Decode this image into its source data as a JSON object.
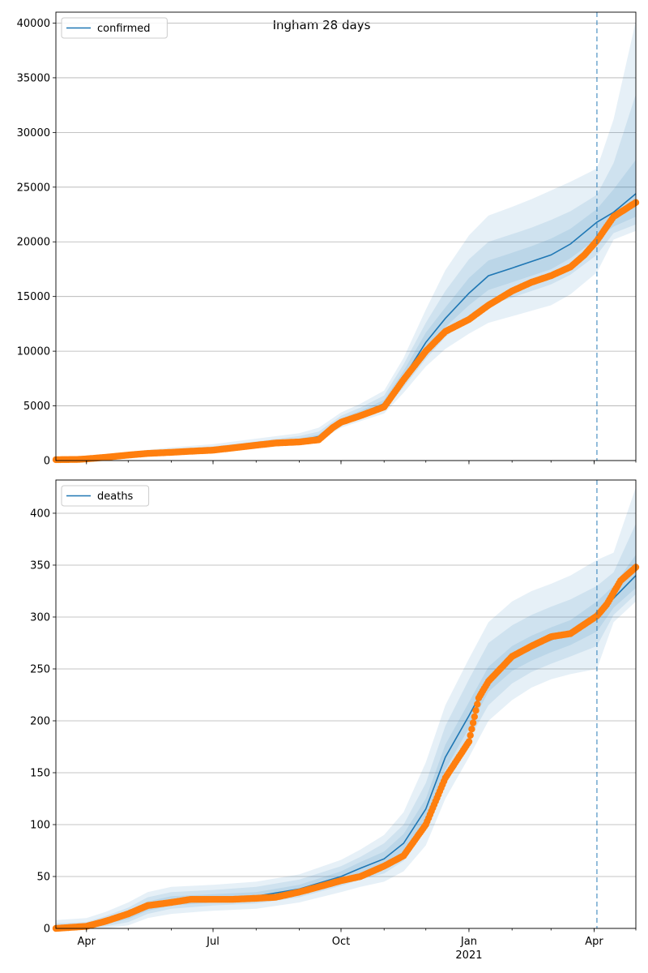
{
  "figure": {
    "title": "Ingham 28 days",
    "forecast_marker_date": "2021-04-03"
  },
  "colors": {
    "model_line": "#1f77b4",
    "band": "#1f77b4",
    "observed": "#ff7f0e",
    "grid": "#b0b0b0"
  },
  "x_axis": {
    "range": [
      "2020-03-10",
      "2021-05-01"
    ],
    "ticks": [
      {
        "date": "2020-04-01",
        "label": "Apr"
      },
      {
        "date": "2020-07-01",
        "label": "Jul"
      },
      {
        "date": "2020-10-01",
        "label": "Oct"
      },
      {
        "date": "2021-01-01",
        "label": "Jan",
        "sublabel": "2021"
      },
      {
        "date": "2021-04-01",
        "label": "Apr"
      }
    ]
  },
  "chart_data": [
    {
      "type": "line",
      "legend": [
        "confirmed"
      ],
      "legend_position": "top-left",
      "grid": "horizontal",
      "ylim": [
        0,
        41000
      ],
      "yticks": [
        0,
        5000,
        10000,
        15000,
        20000,
        25000,
        30000,
        35000,
        40000
      ],
      "series": [
        {
          "name": "confirmed",
          "kind": "model",
          "x": [
            "2020-03-10",
            "2020-04-01",
            "2020-05-01",
            "2020-06-01",
            "2020-07-01",
            "2020-08-01",
            "2020-09-01",
            "2020-09-15",
            "2020-10-01",
            "2020-10-15",
            "2020-11-01",
            "2020-11-15",
            "2020-12-01",
            "2020-12-15",
            "2021-01-01",
            "2021-01-15",
            "2021-02-01",
            "2021-02-15",
            "2021-03-01",
            "2021-03-15",
            "2021-04-03",
            "2021-04-15",
            "2021-05-01"
          ],
          "y": [
            50,
            200,
            500,
            800,
            1000,
            1400,
            1800,
            2200,
            3600,
            4300,
            5200,
            7600,
            10800,
            13000,
            15300,
            16900,
            17600,
            18200,
            18800,
            19800,
            21800,
            22700,
            24400
          ],
          "bands": [
            {
              "lower": [
                0,
                100,
                350,
                600,
                800,
                1150,
                1500,
                1800,
                3000,
                3600,
                4300,
                6200,
                8600,
                10200,
                11600,
                12600,
                13200,
                13700,
                14200,
                15200,
                17200,
                20200,
                21000
              ],
              "upper": [
                200,
                400,
                800,
                1200,
                1500,
                2000,
                2500,
                3000,
                4400,
                5200,
                6400,
                9400,
                13800,
                17400,
                20600,
                22400,
                23200,
                23900,
                24700,
                25500,
                26700,
                31200,
                40200
              ]
            },
            {
              "lower": [
                20,
                140,
                400,
                680,
                880,
                1250,
                1600,
                1950,
                3200,
                3850,
                4600,
                6700,
                9300,
                11300,
                13000,
                14200,
                14900,
                15500,
                16100,
                17000,
                18800,
                20800,
                21600
              ],
              "upper": [
                140,
                320,
                700,
                1050,
                1300,
                1750,
                2250,
                2650,
                4100,
                4850,
                5950,
                8800,
                12600,
                15500,
                18400,
                20000,
                20700,
                21300,
                22000,
                22800,
                24300,
                27200,
                33500
              ]
            },
            {
              "lower": [
                35,
                170,
                450,
                740,
                940,
                1320,
                1700,
                2080,
                3400,
                4050,
                4900,
                7150,
                10000,
                12200,
                14200,
                15600,
                16300,
                16900,
                17500,
                18500,
                20300,
                21400,
                22300
              ],
              "upper": [
                90,
                260,
                600,
                900,
                1150,
                1550,
                2000,
                2400,
                3850,
                4550,
                5550,
                8200,
                11700,
                14000,
                16700,
                18300,
                19000,
                19600,
                20300,
                21200,
                23000,
                24800,
                27500
              ]
            }
          ]
        },
        {
          "name": "",
          "kind": "observed",
          "x": [
            "2020-03-10",
            "2020-03-25",
            "2020-04-01",
            "2020-04-15",
            "2020-05-01",
            "2020-05-15",
            "2020-06-01",
            "2020-06-15",
            "2020-07-01",
            "2020-07-15",
            "2020-08-01",
            "2020-08-15",
            "2020-09-01",
            "2020-09-15",
            "2020-09-25",
            "2020-10-01",
            "2020-10-15",
            "2020-11-01",
            "2020-11-15",
            "2020-12-01",
            "2020-12-15",
            "2021-01-01",
            "2021-01-15",
            "2021-02-01",
            "2021-02-15",
            "2021-03-01",
            "2021-03-15",
            "2021-03-25",
            "2021-04-03",
            "2021-04-15",
            "2021-05-01"
          ],
          "y": [
            80,
            100,
            150,
            300,
            500,
            650,
            750,
            850,
            950,
            1150,
            1400,
            1600,
            1700,
            1900,
            3000,
            3500,
            4100,
            4900,
            7400,
            10000,
            11800,
            12900,
            14200,
            15500,
            16300,
            16900,
            17700,
            18800,
            20100,
            22300,
            23600
          ]
        }
      ]
    },
    {
      "type": "line",
      "legend": [
        "deaths"
      ],
      "legend_position": "top-left",
      "grid": "horizontal",
      "ylim": [
        0,
        432
      ],
      "yticks": [
        0,
        50,
        100,
        150,
        200,
        250,
        300,
        350,
        400
      ],
      "series": [
        {
          "name": "deaths",
          "kind": "model",
          "x": [
            "2020-03-10",
            "2020-04-01",
            "2020-04-15",
            "2020-05-01",
            "2020-05-15",
            "2020-06-01",
            "2020-07-01",
            "2020-08-01",
            "2020-09-01",
            "2020-10-01",
            "2020-10-15",
            "2020-11-01",
            "2020-11-15",
            "2020-12-01",
            "2020-12-15",
            "2021-01-01",
            "2021-01-15",
            "2021-02-01",
            "2021-02-15",
            "2021-03-01",
            "2021-03-15",
            "2021-04-03",
            "2021-04-15",
            "2021-05-01"
          ],
          "y": [
            0,
            2,
            6,
            13,
            22,
            27,
            29,
            31,
            38,
            50,
            58,
            67,
            82,
            115,
            165,
            205,
            240,
            260,
            270,
            278,
            285,
            301,
            318,
            340
          ],
          "bands": [
            {
              "lower": [
                0,
                0,
                0,
                3,
                10,
                14,
                17,
                19,
                25,
                35,
                40,
                45,
                55,
                80,
                125,
                165,
                200,
                220,
                232,
                240,
                245,
                250,
                295,
                315
              ],
              "upper": [
                8,
                10,
                16,
                25,
                35,
                40,
                42,
                45,
                52,
                66,
                76,
                90,
                112,
                160,
                215,
                260,
                295,
                315,
                325,
                332,
                340,
                355,
                362,
                425
              ]
            },
            {
              "lower": [
                0,
                0,
                2,
                6,
                14,
                19,
                22,
                24,
                30,
                41,
                47,
                53,
                65,
                95,
                142,
                182,
                215,
                236,
                247,
                255,
                262,
                272,
                302,
                322
              ],
              "upper": [
                5,
                6,
                12,
                20,
                30,
                35,
                37,
                40,
                47,
                60,
                69,
                82,
                100,
                140,
                195,
                240,
                275,
                292,
                302,
                310,
                317,
                330,
                343,
                390
              ]
            },
            {
              "lower": [
                0,
                1,
                4,
                9,
                17,
                22,
                25,
                27,
                33,
                45,
                52,
                60,
                73,
                105,
                153,
                193,
                228,
                248,
                258,
                266,
                273,
                286,
                309,
                328
              ],
              "upper": [
                2,
                4,
                9,
                16,
                26,
                31,
                33,
                35,
                42,
                55,
                64,
                74,
                91,
                125,
                177,
                218,
                252,
                272,
                282,
                290,
                297,
                315,
                330,
                360
              ]
            }
          ]
        },
        {
          "name": "",
          "kind": "observed",
          "x": [
            "2020-03-10",
            "2020-04-01",
            "2020-04-15",
            "2020-05-01",
            "2020-05-15",
            "2020-06-01",
            "2020-06-15",
            "2020-07-01",
            "2020-07-15",
            "2020-08-01",
            "2020-08-15",
            "2020-09-01",
            "2020-09-15",
            "2020-10-01",
            "2020-10-15",
            "2020-11-01",
            "2020-11-15",
            "2020-12-01",
            "2020-12-15",
            "2021-01-01",
            "2021-01-08",
            "2021-01-15",
            "2021-02-01",
            "2021-02-15",
            "2021-03-01",
            "2021-03-15",
            "2021-04-03",
            "2021-04-10",
            "2021-04-20",
            "2021-05-01"
          ],
          "y": [
            0,
            2,
            7,
            14,
            22,
            25,
            28,
            28,
            28,
            29,
            30,
            35,
            40,
            46,
            50,
            60,
            70,
            100,
            145,
            180,
            222,
            238,
            262,
            272,
            281,
            284,
            301,
            312,
            335,
            348
          ]
        }
      ]
    }
  ]
}
